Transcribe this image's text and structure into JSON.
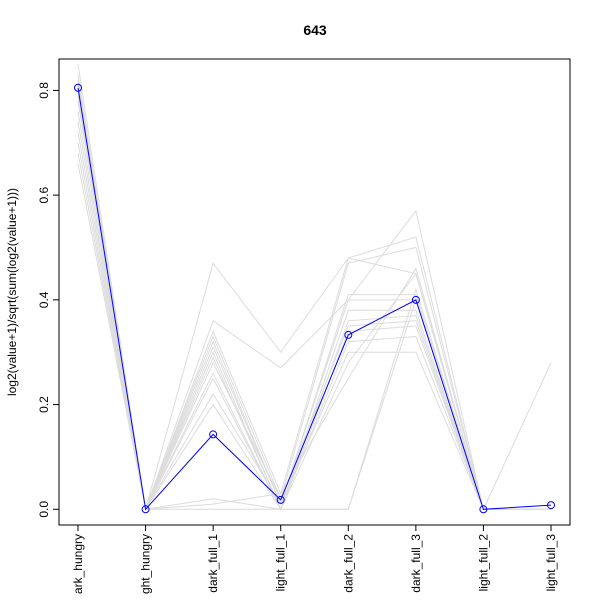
{
  "chart_data": {
    "type": "line",
    "title": "643",
    "ylabel": "log2(value+1)/sqrt(sum(log2(value+1)))",
    "xlabel": "",
    "categories": [
      "dark_hungry",
      "light_hungry",
      "dark_full_1",
      "light_full_1",
      "dark_full_2",
      "dark_full_3",
      "light_full_2",
      "light_full_3"
    ],
    "visible_tick_labels": [
      "ark_hungry",
      "ght_hungry",
      "dark_full_1",
      "light_full_1",
      "dark_full_2",
      "dark_full_3",
      "light_full_2",
      "light_full_3"
    ],
    "ylim": [
      -0.03,
      0.86
    ],
    "yticks": [
      0.0,
      0.2,
      0.4,
      0.6,
      0.8
    ],
    "ytick_labels": [
      "0.0",
      "0.2",
      "0.4",
      "0.6",
      "0.8"
    ],
    "grid": false,
    "legend": "none",
    "highlight": {
      "color": "#0000ff",
      "values": [
        0.805,
        0.0,
        0.143,
        0.018,
        0.333,
        0.4,
        0.0,
        0.008
      ]
    },
    "background_series_color": "#dcdcdc",
    "background_series": [
      [
        0.85,
        0.0,
        0.47,
        0.3,
        0.48,
        0.45,
        0.0,
        0.0
      ],
      [
        0.83,
        0.0,
        0.36,
        0.27,
        0.4,
        0.57,
        0.0,
        0.0
      ],
      [
        0.82,
        0.0,
        0.34,
        0.03,
        0.48,
        0.52,
        0.0,
        0.0
      ],
      [
        0.8,
        0.0,
        0.33,
        0.02,
        0.47,
        0.5,
        0.0,
        0.0
      ],
      [
        0.81,
        0.0,
        0.32,
        0.01,
        0.41,
        0.41,
        0.0,
        0.0
      ],
      [
        0.79,
        0.0,
        0.31,
        0.01,
        0.4,
        0.4,
        0.0,
        0.28
      ],
      [
        0.78,
        0.0,
        0.3,
        0.0,
        0.38,
        0.38,
        0.0,
        0.0
      ],
      [
        0.76,
        0.0,
        0.29,
        0.0,
        0.36,
        0.37,
        0.0,
        0.0
      ],
      [
        0.74,
        0.0,
        0.28,
        0.02,
        0.35,
        0.36,
        0.0,
        0.0
      ],
      [
        0.72,
        0.0,
        0.26,
        0.0,
        0.34,
        0.35,
        0.0,
        0.0
      ],
      [
        0.7,
        0.0,
        0.25,
        0.0,
        0.32,
        0.33,
        0.0,
        0.0
      ],
      [
        0.68,
        0.0,
        0.22,
        0.01,
        0.3,
        0.3,
        0.0,
        0.0
      ],
      [
        0.66,
        0.0,
        0.2,
        0.0,
        0.28,
        0.45,
        0.0,
        0.0
      ],
      [
        0.81,
        0.0,
        0.02,
        0.0,
        0.0,
        0.4,
        0.0,
        0.0
      ],
      [
        0.82,
        0.0,
        0.01,
        0.03,
        0.25,
        0.46,
        0.0,
        0.0
      ],
      [
        0.8,
        0.0,
        0.0,
        0.0,
        0.0,
        0.42,
        0.0,
        0.0
      ]
    ]
  }
}
